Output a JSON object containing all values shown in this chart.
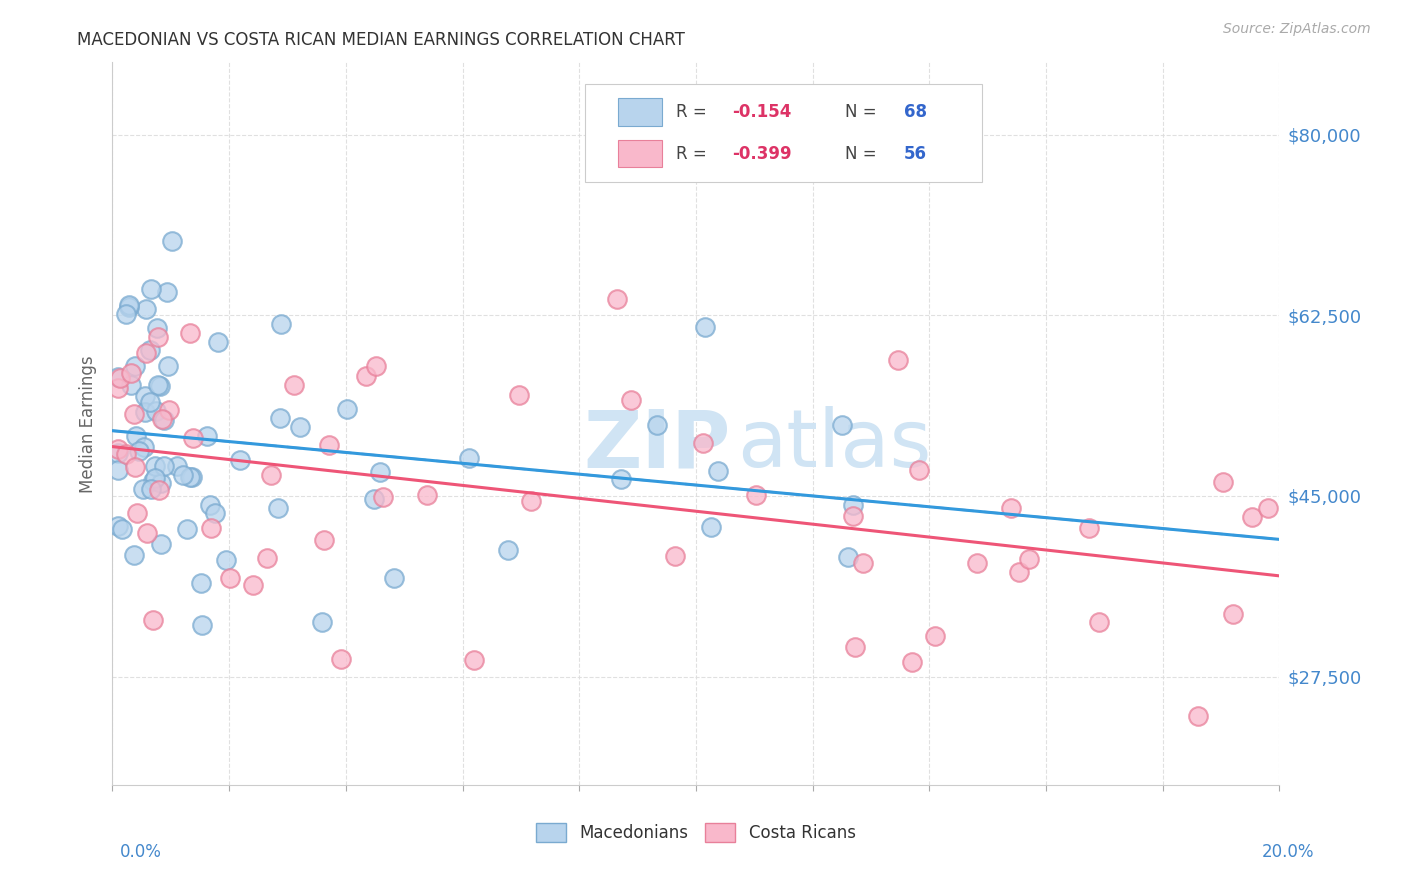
{
  "title": "MACEDONIAN VS COSTA RICAN MEDIAN EARNINGS CORRELATION CHART",
  "source": "Source: ZipAtlas.com",
  "ylabel": "Median Earnings",
  "ytick_labels": [
    "$27,500",
    "$45,000",
    "$62,500",
    "$80,000"
  ],
  "ytick_values": [
    27500,
    45000,
    62500,
    80000
  ],
  "ylim": [
    17000,
    87000
  ],
  "xlim": [
    0.0,
    0.2
  ],
  "macedonian_color": "#b8d4ed",
  "macedonian_edge": "#7aaad0",
  "costa_rican_color": "#f9b8cb",
  "costa_rican_edge": "#e8809a",
  "trendline_blue": "#3399dd",
  "trendline_pink": "#ee5577",
  "trendline_dashed_color": "#99bbdd",
  "background_color": "#ffffff",
  "grid_color": "#dddddd",
  "title_color": "#333333",
  "axis_label_color": "#666666",
  "ytick_color": "#4488cc",
  "watermark_color": "#d0e4f4",
  "R_value_color": "#dd3366",
  "N_value_color": "#3366cc"
}
